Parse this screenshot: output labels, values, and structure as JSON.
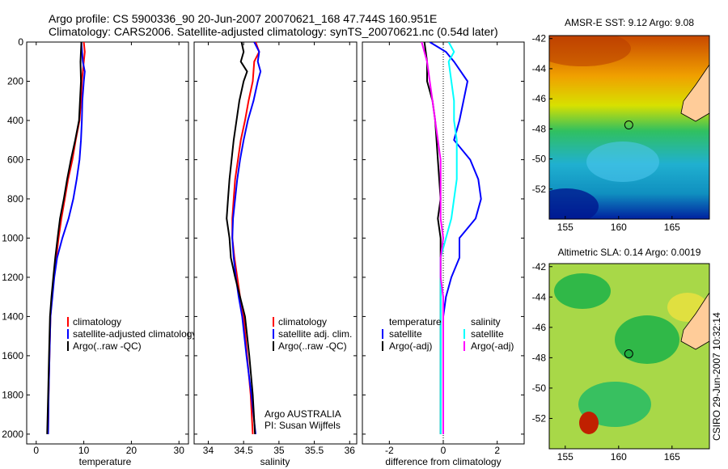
{
  "title": {
    "line1": "Argo profile: CS 5900336_90 20-Jun-2007 20070621_168 47.744S 160.951E",
    "line2": "Climatology: CARS2006. Satellite-adjusted climatology: synTS_20070621.nc (0.54d later)"
  },
  "colors": {
    "climatology": "#ff0000",
    "satellite": "#0000ff",
    "argo": "#000000",
    "satellite_salinity": "#00ffff",
    "argo_salinity_diff": "#ff00ff"
  },
  "chart_data": [
    {
      "type": "line",
      "panel": "temperature",
      "xlabel": "temperature",
      "ylabel": "",
      "xlim": [
        -2,
        32
      ],
      "ylim": [
        0,
        2050
      ],
      "y_reversed": true,
      "xticks": [
        "0",
        "10",
        "20",
        "30"
      ],
      "yticks": [
        "0",
        "200",
        "400",
        "600",
        "800",
        "1000",
        "1200",
        "1400",
        "1600",
        "1800",
        "2000"
      ],
      "legend": [
        "climatology",
        "satellite-adjusted climatology",
        "Argo(..raw -QC)"
      ],
      "series": [
        {
          "name": "climatology",
          "color": "#ff0000",
          "points": [
            [
              10.0,
              0
            ],
            [
              10.2,
              50
            ],
            [
              10.0,
              100
            ],
            [
              9.6,
              200
            ],
            [
              9.4,
              300
            ],
            [
              9.1,
              400
            ],
            [
              8.3,
              500
            ],
            [
              7.6,
              600
            ],
            [
              6.7,
              700
            ],
            [
              6.0,
              800
            ],
            [
              5.3,
              900
            ],
            [
              4.7,
              1000
            ],
            [
              4.2,
              1100
            ],
            [
              3.7,
              1200
            ],
            [
              3.3,
              1300
            ],
            [
              3.0,
              1400
            ],
            [
              2.8,
              1600
            ],
            [
              2.6,
              1800
            ],
            [
              2.5,
              2000
            ]
          ]
        },
        {
          "name": "satellite-adjusted climatology",
          "color": "#0000ff",
          "points": [
            [
              9.5,
              0
            ],
            [
              9.8,
              100
            ],
            [
              10.2,
              150
            ],
            [
              10.0,
              200
            ],
            [
              9.7,
              300
            ],
            [
              9.6,
              400
            ],
            [
              9.4,
              500
            ],
            [
              9.1,
              600
            ],
            [
              8.5,
              700
            ],
            [
              7.8,
              800
            ],
            [
              6.8,
              900
            ],
            [
              5.5,
              1000
            ],
            [
              4.4,
              1100
            ],
            [
              3.8,
              1200
            ],
            [
              3.4,
              1300
            ],
            [
              3.0,
              1400
            ],
            [
              2.8,
              1600
            ],
            [
              2.6,
              1800
            ],
            [
              2.5,
              2000
            ]
          ]
        },
        {
          "name": "Argo(..raw -QC)",
          "color": "#000000",
          "points": [
            [
              9.5,
              0
            ],
            [
              9.3,
              100
            ],
            [
              9.4,
              200
            ],
            [
              9.2,
              300
            ],
            [
              9.0,
              400
            ],
            [
              8.2,
              500
            ],
            [
              7.3,
              600
            ],
            [
              6.5,
              700
            ],
            [
              5.8,
              800
            ],
            [
              5.0,
              900
            ],
            [
              4.5,
              1000
            ],
            [
              4.0,
              1100
            ],
            [
              3.6,
              1200
            ],
            [
              3.2,
              1300
            ],
            [
              2.9,
              1400
            ],
            [
              2.7,
              1600
            ],
            [
              2.5,
              1800
            ],
            [
              2.3,
              2000
            ]
          ]
        }
      ]
    },
    {
      "type": "line",
      "panel": "salinity",
      "xlabel": "salinity",
      "ylabel": "",
      "xlim": [
        33.8,
        36.1
      ],
      "ylim": [
        0,
        2050
      ],
      "y_reversed": true,
      "xticks": [
        "34",
        "34.5",
        "35",
        "35.5",
        "36"
      ],
      "legend": [
        "climatology",
        "satellite adj. clim.",
        "Argo(..raw -QC)"
      ],
      "annotation": [
        "Argo AUSTRALIA",
        "PI: Susan Wijffels"
      ],
      "series": [
        {
          "name": "climatology",
          "color": "#ff0000",
          "points": [
            [
              34.67,
              0
            ],
            [
              34.72,
              50
            ],
            [
              34.65,
              100
            ],
            [
              34.63,
              200
            ],
            [
              34.57,
              300
            ],
            [
              34.52,
              400
            ],
            [
              34.46,
              500
            ],
            [
              34.42,
              600
            ],
            [
              34.38,
              700
            ],
            [
              34.36,
              800
            ],
            [
              34.34,
              900
            ],
            [
              34.34,
              1000
            ],
            [
              34.37,
              1100
            ],
            [
              34.41,
              1200
            ],
            [
              34.45,
              1300
            ],
            [
              34.5,
              1400
            ],
            [
              34.55,
              1600
            ],
            [
              34.6,
              1800
            ],
            [
              34.63,
              2000
            ]
          ]
        },
        {
          "name": "satellite adj. clim.",
          "color": "#0000ff",
          "points": [
            [
              34.65,
              0
            ],
            [
              34.72,
              50
            ],
            [
              34.7,
              100
            ],
            [
              34.74,
              150
            ],
            [
              34.7,
              200
            ],
            [
              34.64,
              300
            ],
            [
              34.56,
              400
            ],
            [
              34.5,
              500
            ],
            [
              34.45,
              600
            ],
            [
              34.41,
              700
            ],
            [
              34.38,
              800
            ],
            [
              34.35,
              900
            ],
            [
              34.34,
              1000
            ],
            [
              34.36,
              1100
            ],
            [
              34.39,
              1200
            ],
            [
              34.43,
              1300
            ],
            [
              34.48,
              1400
            ],
            [
              34.54,
              1600
            ],
            [
              34.61,
              1800
            ],
            [
              34.67,
              2000
            ]
          ]
        },
        {
          "name": "Argo(..raw -QC)",
          "color": "#000000",
          "points": [
            [
              34.47,
              0
            ],
            [
              34.5,
              50
            ],
            [
              34.46,
              100
            ],
            [
              34.55,
              150
            ],
            [
              34.5,
              200
            ],
            [
              34.44,
              300
            ],
            [
              34.4,
              400
            ],
            [
              34.36,
              500
            ],
            [
              34.33,
              600
            ],
            [
              34.3,
              700
            ],
            [
              34.28,
              800
            ],
            [
              34.26,
              900
            ],
            [
              34.3,
              1000
            ],
            [
              34.32,
              1100
            ],
            [
              34.38,
              1200
            ],
            [
              34.45,
              1300
            ],
            [
              34.52,
              1400
            ],
            [
              34.58,
              1600
            ],
            [
              34.63,
              1800
            ],
            [
              34.66,
              2000
            ]
          ]
        }
      ]
    },
    {
      "type": "line",
      "panel": "difference",
      "xlabel": "difference from climatology",
      "ylabel": "",
      "xlim": [
        -3,
        3
      ],
      "ylim": [
        0,
        2050
      ],
      "y_reversed": true,
      "xticks": [
        "-2",
        "0",
        "2"
      ],
      "legend_temperature": [
        "temperature",
        "satellite",
        "Argo(-adj)"
      ],
      "legend_salinity": [
        "salinity",
        "satellite",
        "Argo(-adj)"
      ],
      "series": [
        {
          "name": "temperature satellite",
          "color": "#0000ff",
          "points": [
            [
              -0.5,
              0
            ],
            [
              0.1,
              50
            ],
            [
              0.4,
              100
            ],
            [
              0.9,
              200
            ],
            [
              0.6,
              400
            ],
            [
              0.4,
              500
            ],
            [
              1.0,
              600
            ],
            [
              1.3,
              700
            ],
            [
              1.4,
              800
            ],
            [
              1.2,
              900
            ],
            [
              0.6,
              1000
            ],
            [
              0.6,
              1100
            ],
            [
              0.3,
              1200
            ],
            [
              0.1,
              1300
            ],
            [
              0.0,
              1400
            ],
            [
              0.0,
              1600
            ],
            [
              0.0,
              1800
            ],
            [
              0.0,
              2000
            ]
          ]
        },
        {
          "name": "temperature Argo(-adj)",
          "color": "#000000",
          "points": [
            [
              -0.7,
              0
            ],
            [
              -0.6,
              100
            ],
            [
              -0.6,
              200
            ],
            [
              -0.4,
              300
            ],
            [
              -0.3,
              400
            ],
            [
              -0.2,
              600
            ],
            [
              -0.1,
              800
            ],
            [
              -0.2,
              900
            ],
            [
              -0.1,
              1000
            ],
            [
              -0.1,
              1100
            ],
            [
              -0.1,
              1200
            ],
            [
              -0.1,
              1400
            ],
            [
              -0.1,
              1600
            ],
            [
              -0.1,
              1800
            ],
            [
              -0.1,
              2000
            ]
          ]
        },
        {
          "name": "salinity satellite",
          "color": "#00ffff",
          "points": [
            [
              0.2,
              0
            ],
            [
              0.4,
              50
            ],
            [
              0.2,
              100
            ],
            [
              0.3,
              200
            ],
            [
              0.4,
              300
            ],
            [
              0.4,
              400
            ],
            [
              0.5,
              500
            ],
            [
              0.5,
              600
            ],
            [
              0.5,
              700
            ],
            [
              0.4,
              800
            ],
            [
              0.3,
              900
            ],
            [
              0.1,
              1000
            ],
            [
              -0.1,
              1100
            ],
            [
              -0.1,
              1200
            ],
            [
              -0.1,
              1300
            ],
            [
              -0.1,
              1400
            ],
            [
              -0.1,
              1600
            ],
            [
              -0.1,
              1800
            ],
            [
              -0.1,
              2000
            ]
          ]
        },
        {
          "name": "salinity Argo(-adj)",
          "color": "#ff00ff",
          "points": [
            [
              -0.8,
              0
            ],
            [
              -0.6,
              100
            ],
            [
              -0.5,
              200
            ],
            [
              -0.4,
              300
            ],
            [
              -0.3,
              400
            ],
            [
              -0.2,
              500
            ],
            [
              -0.1,
              600
            ],
            [
              -0.1,
              700
            ],
            [
              -0.1,
              800
            ],
            [
              -0.1,
              900
            ],
            [
              0.0,
              1000
            ],
            [
              -0.1,
              1100
            ],
            [
              -0.1,
              1200
            ],
            [
              0.0,
              1300
            ],
            [
              0.0,
              1400
            ],
            [
              0.0,
              1600
            ],
            [
              0.0,
              1800
            ],
            [
              0.0,
              2000
            ]
          ]
        }
      ]
    },
    {
      "type": "heatmap",
      "panel": "sst_map",
      "title": "AMSR-E SST: 9.12 Argo: 9.08",
      "xlim": [
        153.5,
        168.5
      ],
      "ylim": [
        -54,
        -41.8
      ],
      "xticks": [
        "155",
        "160",
        "165"
      ],
      "yticks": [
        "-42",
        "-44",
        "-46",
        "-48",
        "-50",
        "-52"
      ],
      "marker": {
        "lon": 160.95,
        "lat": -47.74
      }
    },
    {
      "type": "heatmap",
      "panel": "sla_map",
      "title": "Altimetric SLA: 0.14 Argo: 0.0019",
      "xlim": [
        153.5,
        168.5
      ],
      "ylim": [
        -54,
        -41.8
      ],
      "xticks": [
        "155",
        "160",
        "165"
      ],
      "yticks": [
        "-42",
        "-44",
        "-46",
        "-48",
        "-50",
        "-52"
      ],
      "marker": {
        "lon": 160.95,
        "lat": -47.74
      }
    }
  ],
  "side_label": "CSIRO 29-Jun-2007 10:32:14"
}
